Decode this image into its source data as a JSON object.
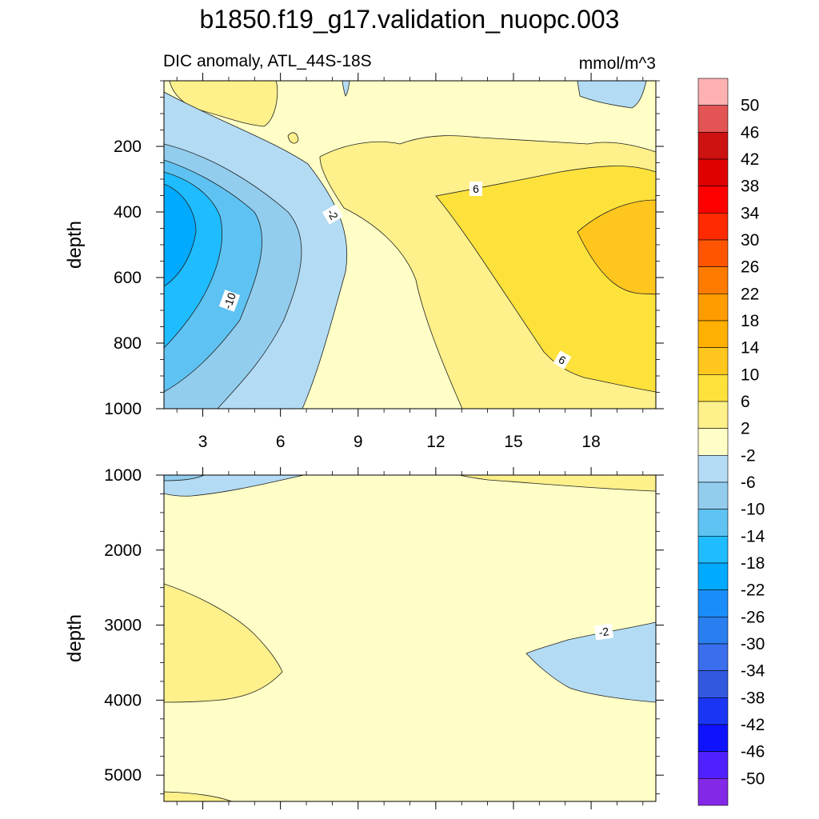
{
  "chart_data": [
    {
      "type": "contour",
      "title": "b1850.f19_g17.validation_nuopc.003",
      "subtitle": "DIC anomaly, ATL_44S-18S",
      "units": "mmol/m^3",
      "ylabel": "depth",
      "xlabel": "",
      "xlim": [
        1.5,
        20.5
      ],
      "ylim": [
        1000,
        0
      ],
      "xticks": [
        3,
        6,
        9,
        12,
        15,
        18
      ],
      "yticks": [
        200,
        400,
        600,
        800,
        1000
      ],
      "contour_labels": [
        "-2",
        "-10",
        "6",
        "6"
      ],
      "regions": [
        {
          "level": -2,
          "desc": "background band between -2 and 2"
        },
        {
          "level": -6,
          "desc": "west-side negative anomaly"
        },
        {
          "level": -10,
          "desc": "west-side negative anomaly"
        },
        {
          "level": -14,
          "desc": "west-side negative anomaly"
        },
        {
          "level": -18,
          "desc": "core of negative anomaly near depth 300-500"
        },
        {
          "level": 2,
          "desc": "positive anomaly central/east"
        },
        {
          "level": 6,
          "desc": "positive anomaly east"
        },
        {
          "level": 10,
          "desc": "maximum positive anomaly near x 18-20, depth 400-600"
        }
      ]
    },
    {
      "type": "contour",
      "ylabel": "depth",
      "xlabel": "",
      "xlim": [
        1.5,
        20.5
      ],
      "ylim": [
        5350,
        1000
      ],
      "xticks": [
        3,
        6,
        9,
        12,
        15,
        18
      ],
      "yticks": [
        1000,
        2000,
        3000,
        4000,
        5000
      ],
      "contour_labels": [
        "-2"
      ]
    }
  ],
  "colorbar": {
    "labels": [
      "50",
      "46",
      "42",
      "38",
      "34",
      "30",
      "26",
      "22",
      "18",
      "14",
      "10",
      "6",
      "2",
      "-2",
      "-6",
      "-10",
      "-14",
      "-18",
      "-22",
      "-26",
      "-30",
      "-34",
      "-38",
      "-42",
      "-46",
      "-50"
    ],
    "colors": [
      "#fdb1b1",
      "#e35454",
      "#cd1212",
      "#e00000",
      "#ff0000",
      "#ff2a00",
      "#ff5500",
      "#ff7b00",
      "#ff9c00",
      "#ffb000",
      "#ffc61e",
      "#fee23c",
      "#fef08a",
      "#fefec6",
      "#b3dbf4",
      "#92cdee",
      "#5ec3f3",
      "#1fbcff",
      "#00aaff",
      "#198efb",
      "#2a7ff0",
      "#3a6eec",
      "#3258e0",
      "#1a36f4",
      "#0f12ff",
      "#5020ff",
      "#8428e8"
    ]
  },
  "palette": {
    "c_m6": "#b3dbf4",
    "c_m10": "#92cdee",
    "c_m14": "#5ec3f3",
    "c_m18": "#1fbcff",
    "c_m22": "#00aaff",
    "c_m2": "#fefec6",
    "c_2": "#fef08a",
    "c_6": "#fee23c",
    "c_10": "#ffc61e"
  }
}
